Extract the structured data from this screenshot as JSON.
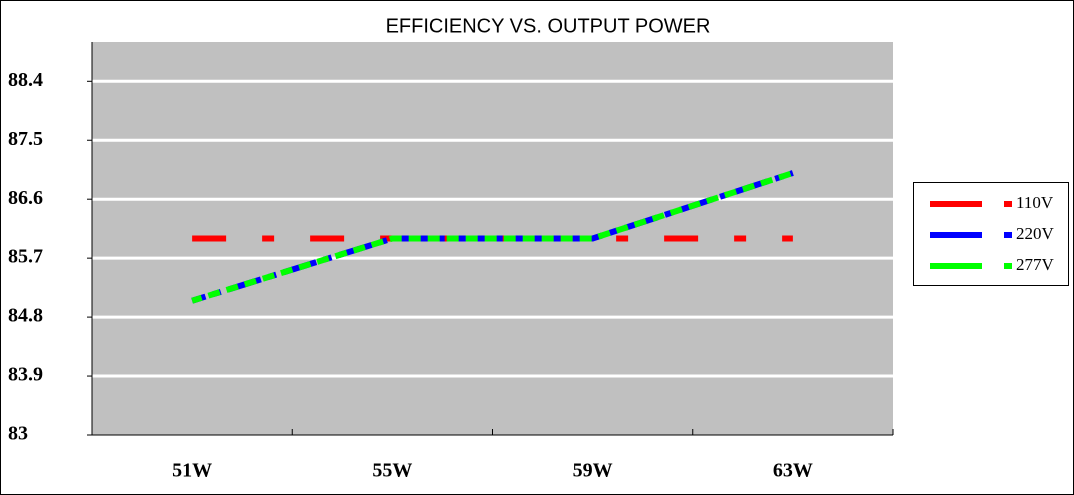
{
  "chart_data": {
    "type": "line",
    "title": "EFFICIENCY VS. OUTPUT POWER",
    "categories": [
      "51W",
      "55W",
      "59W",
      "63W"
    ],
    "series": [
      {
        "name": "110V",
        "color": "#ff0000",
        "values": [
          86.0,
          86.0,
          86.0,
          86.0
        ]
      },
      {
        "name": "220V",
        "color": "#0000ff",
        "values": [
          85.05,
          86.0,
          86.0,
          87.0
        ]
      },
      {
        "name": "277V",
        "color": "#00ff00",
        "values": [
          85.05,
          86.0,
          86.0,
          87.0
        ]
      }
    ],
    "ylim": [
      83,
      89
    ],
    "yticks": [
      83,
      83.9,
      84.8,
      85.7,
      86.6,
      87.5,
      88.4
    ],
    "grid": true,
    "legend": "right"
  }
}
